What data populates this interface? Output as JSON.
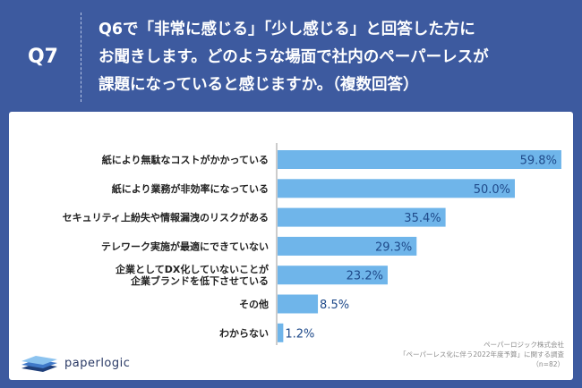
{
  "header": {
    "question_label": "Q7",
    "question_text": "Q6で「非常に感じる」「少し感じる」と回答した方に\nお聞きします。どのような場面で社内のペーパーレスが\n課題になっていると感じますか。（複数回答）"
  },
  "chart_data": {
    "type": "bar",
    "orientation": "horizontal",
    "categories": [
      "紙により無駄なコストがかかっている",
      "紙により業務が非効率になっている",
      "セキュリティ上紛失や情報漏洩のリスクがある",
      "テレワーク実施が最適にできていない",
      "企業としてDX化していないことが\n企業ブランドを低下させている",
      "その他",
      "わからない"
    ],
    "values": [
      59.8,
      50.0,
      35.4,
      29.3,
      23.2,
      8.5,
      1.2
    ],
    "value_labels": [
      "59.8%",
      "50.0%",
      "35.4%",
      "29.3%",
      "23.2%",
      "8.5%",
      "1.2%"
    ],
    "xlim": [
      0,
      60
    ],
    "bar_color": "#6fb5ea",
    "label_color": "#1f4a8a",
    "grid": false
  },
  "footer": {
    "company": "ペーパーロジック株式会社",
    "survey": "「ペーパーレス化に伴う2022年度予算」に関する調査",
    "sample": "（n=82）"
  },
  "logo": {
    "icon": "paperlogic-stack-icon",
    "text": "paperlogic"
  },
  "colors": {
    "header_bg": "#3d5a9f",
    "card_bg": "#ffffff"
  }
}
